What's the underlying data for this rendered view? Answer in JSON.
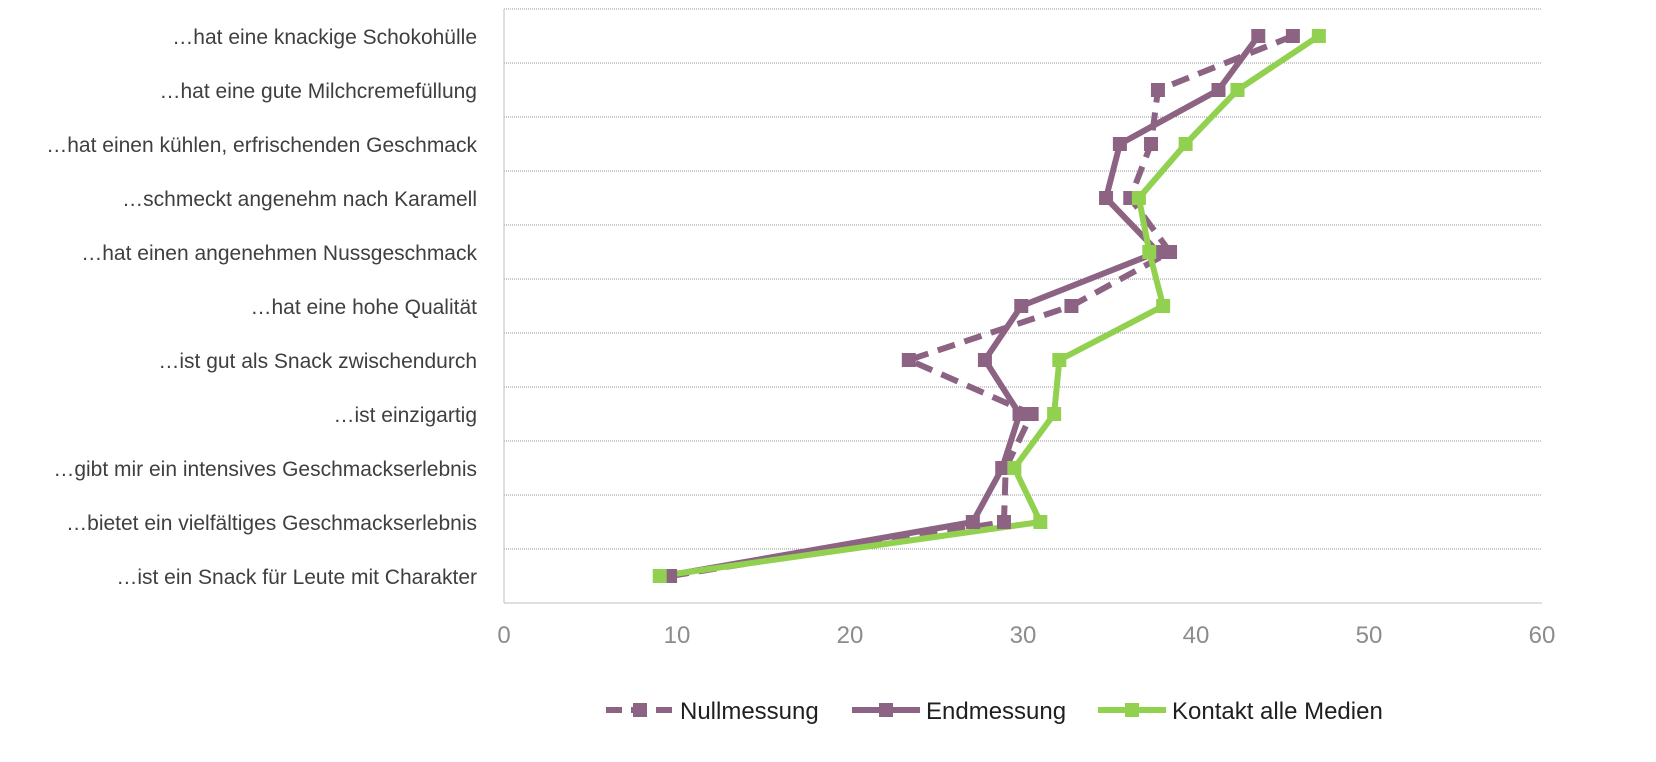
{
  "chart_data": {
    "type": "line",
    "orientation": "horizontal-categories-on-y",
    "categories": [
      "…hat eine knackige Schokohülle",
      "…hat eine gute Milchcremefüllung",
      "…hat einen kühlen, erfrischenden Geschmack",
      "…schmeckt angenehm nach Karamell",
      "…hat einen angenehmen Nussgeschmack",
      "…hat eine hohe Qualität",
      "…ist gut als Snack zwischendurch",
      "…ist einzigartig",
      "…gibt mir ein intensives Geschmackserlebnis",
      "…bietet ein vielfältiges Geschmackserlebnis",
      "…ist ein Snack für Leute mit Charakter"
    ],
    "series": [
      {
        "name": "Nullmessung",
        "color": "#8d6383",
        "dashed": true,
        "values": [
          45.6,
          37.8,
          37.4,
          36.2,
          38.5,
          32.8,
          23.4,
          30.5,
          29.0,
          28.9,
          9.6
        ]
      },
      {
        "name": "Endmessung",
        "color": "#8d6383",
        "dashed": false,
        "values": [
          43.6,
          41.3,
          35.6,
          34.8,
          37.8,
          29.9,
          27.8,
          29.8,
          28.8,
          27.1,
          9.3
        ]
      },
      {
        "name": "Kontakt alle Medien",
        "color": "#92d050",
        "dashed": false,
        "values": [
          47.1,
          42.4,
          39.4,
          36.7,
          37.3,
          38.1,
          32.1,
          31.8,
          29.5,
          31.0,
          9.0
        ]
      }
    ],
    "x_ticks": [
      "0",
      "10",
      "20",
      "30",
      "40",
      "50",
      "60"
    ],
    "xlim": [
      0,
      60
    ],
    "grid": true,
    "legend_position": "bottom"
  }
}
